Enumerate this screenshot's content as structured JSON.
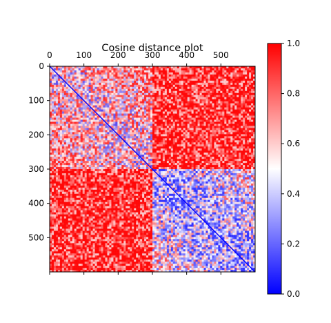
{
  "chart_data": {
    "type": "heatmap",
    "title": "Cosine distance plot",
    "xlabel": "",
    "ylabel": "",
    "n": 600,
    "xlim": [
      0,
      600
    ],
    "ylim": [
      600,
      0
    ],
    "x_ticks": [
      0,
      100,
      200,
      300,
      400,
      500
    ],
    "y_ticks": [
      0,
      100,
      200,
      300,
      400,
      500
    ],
    "x_tick_labels": [
      "0",
      "100",
      "200",
      "300",
      "400",
      "500"
    ],
    "y_tick_labels": [
      "0",
      "100",
      "200",
      "300",
      "400",
      "500"
    ],
    "x_tick_position": "top",
    "grid": false,
    "colormap": {
      "name": "bwr",
      "min_color": "#0000ff",
      "mid_color": "#ffffff",
      "max_color": "#ff0000",
      "vmin": 0.0,
      "vmax": 1.0
    },
    "colorbar": {
      "position": "right",
      "ticks": [
        0.0,
        0.2,
        0.4,
        0.6,
        0.8,
        1.0
      ],
      "tick_labels": [
        "0.0",
        "0.2",
        "0.4",
        "0.6",
        "0.8",
        "1.0"
      ]
    },
    "blocks": [
      {
        "rows": [
          0,
          300
        ],
        "cols": [
          0,
          300
        ],
        "value": 0.65
      },
      {
        "rows": [
          0,
          300
        ],
        "cols": [
          300,
          600
        ],
        "value": 0.92
      },
      {
        "rows": [
          300,
          600
        ],
        "cols": [
          0,
          300
        ],
        "value": 0.92
      },
      {
        "rows": [
          300,
          600
        ],
        "cols": [
          300,
          600
        ],
        "value": 0.45
      }
    ],
    "diagonal_value": 0.0
  }
}
